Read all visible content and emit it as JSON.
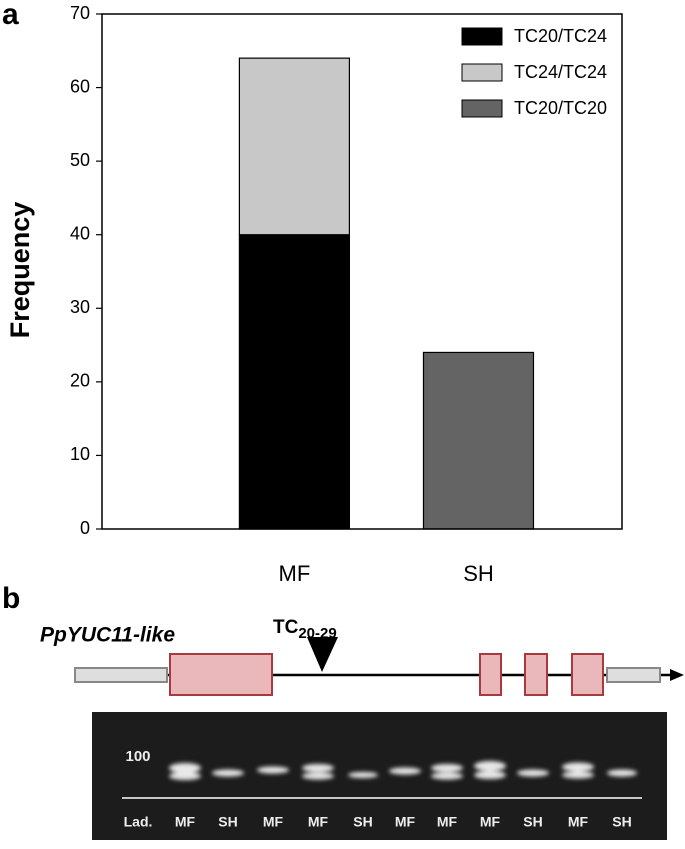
{
  "panel_labels": [
    "a",
    "b"
  ],
  "chart_data": {
    "type": "stacked-bar",
    "ylabel": "Frequency",
    "categories": [
      "MF",
      "SH"
    ],
    "series": [
      {
        "name": "TC20/TC24",
        "color": "#000000",
        "values": [
          40,
          null
        ]
      },
      {
        "name": "TC24/TC24",
        "color": "#c8c8c8",
        "values": [
          24,
          null
        ]
      },
      {
        "name": "TC20/TC20",
        "color": "#646464",
        "values": [
          null,
          24
        ]
      }
    ],
    "ylim": [
      0,
      70
    ],
    "yticks": [
      0,
      10,
      20,
      30,
      40,
      50,
      60,
      70
    ],
    "grid": false,
    "legend": "top-right"
  },
  "gene_diagram": {
    "gene": "PpYUC11-like",
    "site_label": "TC",
    "site_subscript": "20-29"
  },
  "gel": {
    "ladder_mark": "100",
    "lanes": [
      "Lad.",
      "MF",
      "SH",
      "MF",
      "MF",
      "SH",
      "MF",
      "MF",
      "MF",
      "SH",
      "MF",
      "SH"
    ]
  }
}
